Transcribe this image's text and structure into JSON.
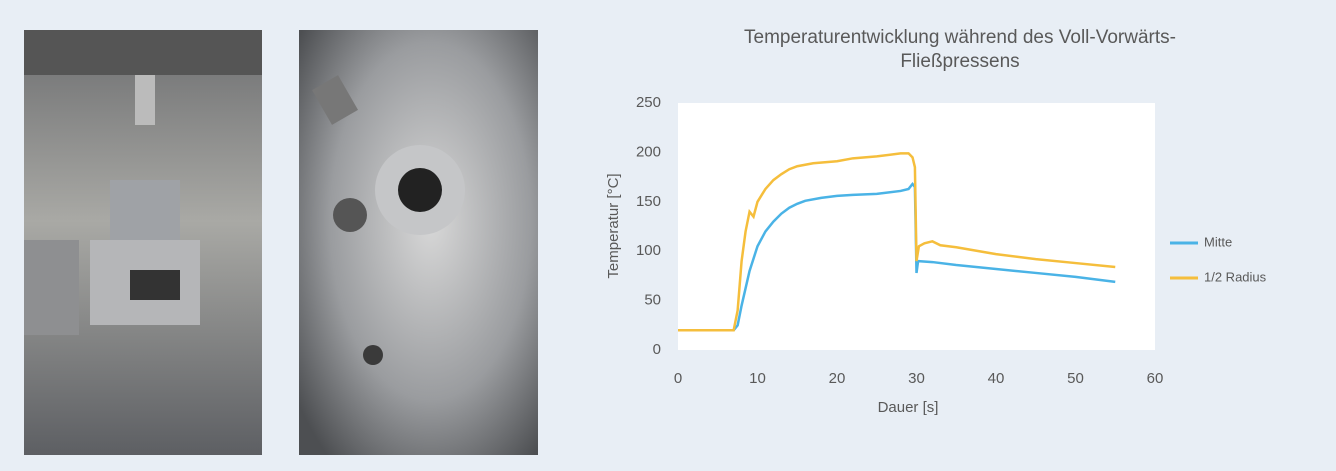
{
  "chart_data": {
    "type": "line",
    "title": "Temperaturentwicklung  während des Voll-Vorwärts-",
    "title_line2": "Fließpressens",
    "x_label": "Dauer [s]",
    "y_label": "Temperatur [°C]",
    "xlim": [
      0,
      60
    ],
    "xticks": [
      0,
      10,
      20,
      30,
      40,
      50,
      60
    ],
    "ylim": [
      0,
      250
    ],
    "yticks": [
      0,
      50,
      100,
      150,
      200,
      250
    ],
    "grid": false,
    "legend": "right",
    "series": [
      {
        "name": "Mitte",
        "color": "#4ab3e6",
        "x": [
          0,
          7,
          7.5,
          8,
          9,
          10,
          11,
          12,
          13,
          14,
          15,
          16,
          18,
          20,
          22,
          25,
          28,
          29,
          29.5,
          29.8,
          30,
          30.2,
          32,
          35,
          40,
          45,
          50,
          55
        ],
        "values": [
          20,
          20,
          25,
          45,
          80,
          105,
          120,
          130,
          138,
          144,
          148,
          151,
          154,
          156,
          157,
          158,
          161,
          163,
          168,
          165,
          78,
          90,
          89,
          86,
          82,
          78,
          74,
          69
        ]
      },
      {
        "name": "1/2 Radius",
        "color": "#f5be3c",
        "x": [
          0,
          7,
          7.5,
          8,
          8.5,
          9,
          9.5,
          10,
          11,
          12,
          13,
          14,
          15,
          17,
          20,
          22,
          25,
          28,
          29,
          29.5,
          29.8,
          30,
          30.3,
          31,
          32,
          33,
          35,
          40,
          45,
          50,
          55
        ],
        "values": [
          20,
          20,
          40,
          90,
          120,
          140,
          135,
          150,
          163,
          172,
          178,
          183,
          186,
          189,
          191,
          194,
          196,
          199,
          199,
          195,
          185,
          90,
          105,
          108,
          110,
          106,
          104,
          97,
          92,
          88,
          84
        ]
      }
    ]
  }
}
